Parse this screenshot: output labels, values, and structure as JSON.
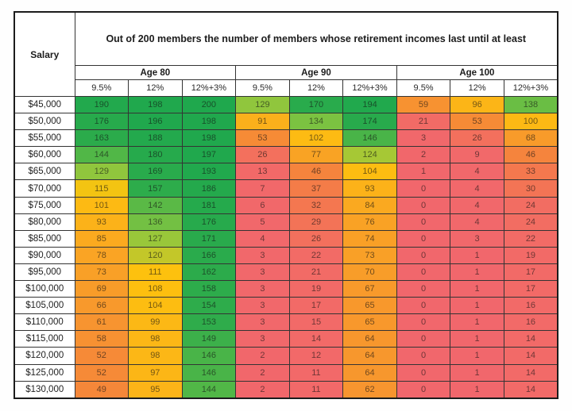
{
  "chart_data": {
    "type": "heatmap",
    "title": "Out of 200 members the number of members whose retirement incomes last until at least",
    "corner_label": "Salary",
    "column_groups": [
      "Age 80",
      "Age 90",
      "Age 100"
    ],
    "sub_columns": [
      "9.5%",
      "12%",
      "12%+3%"
    ],
    "rows": [
      "$45,000",
      "$50,000",
      "$55,000",
      "$60,000",
      "$65,000",
      "$70,000",
      "$75,000",
      "$80,000",
      "$85,000",
      "$90,000",
      "$95,000",
      "$100,000",
      "$105,000",
      "$110,000",
      "$115,000",
      "$120,000",
      "$125,000",
      "$130,000"
    ],
    "values": [
      [
        190,
        198,
        200,
        129,
        170,
        194,
        59,
        96,
        138
      ],
      [
        176,
        196,
        198,
        91,
        134,
        174,
        21,
        53,
        100
      ],
      [
        163,
        188,
        198,
        53,
        102,
        146,
        3,
        26,
        68
      ],
      [
        144,
        180,
        197,
        26,
        77,
        124,
        2,
        9,
        46
      ],
      [
        129,
        169,
        193,
        13,
        46,
        104,
        1,
        4,
        33
      ],
      [
        115,
        157,
        186,
        7,
        37,
        93,
        0,
        4,
        30
      ],
      [
        101,
        142,
        181,
        6,
        32,
        84,
        0,
        4,
        24
      ],
      [
        93,
        136,
        176,
        5,
        29,
        76,
        0,
        4,
        24
      ],
      [
        85,
        127,
        171,
        4,
        26,
        74,
        0,
        3,
        22
      ],
      [
        78,
        120,
        166,
        3,
        22,
        73,
        0,
        1,
        19
      ],
      [
        73,
        111,
        162,
        3,
        21,
        70,
        0,
        1,
        17
      ],
      [
        69,
        108,
        158,
        3,
        19,
        67,
        0,
        1,
        17
      ],
      [
        66,
        104,
        154,
        3,
        17,
        65,
        0,
        1,
        16
      ],
      [
        61,
        99,
        153,
        3,
        15,
        65,
        0,
        1,
        16
      ],
      [
        58,
        98,
        149,
        3,
        14,
        64,
        0,
        1,
        14
      ],
      [
        52,
        98,
        146,
        2,
        12,
        64,
        0,
        1,
        14
      ],
      [
        52,
        97,
        146,
        2,
        11,
        64,
        0,
        1,
        14
      ],
      [
        49,
        95,
        144,
        2,
        11,
        62,
        0,
        1,
        14
      ]
    ],
    "value_range": [
      0,
      200
    ],
    "color_scale": {
      "stops": [
        [
          0,
          "#F1676C"
        ],
        [
          22,
          "#F26B66"
        ],
        [
          34,
          "#F4794C"
        ],
        [
          48,
          "#F5863A"
        ],
        [
          68,
          "#F89B2A"
        ],
        [
          88,
          "#FBAD1D"
        ],
        [
          104,
          "#FDBD11"
        ],
        [
          114,
          "#FDC30D"
        ],
        [
          122,
          "#AFC832"
        ],
        [
          130,
          "#8CC63F"
        ],
        [
          140,
          "#62BC45"
        ],
        [
          152,
          "#2FAC4B"
        ],
        [
          200,
          "#1FA84D"
        ]
      ]
    }
  }
}
